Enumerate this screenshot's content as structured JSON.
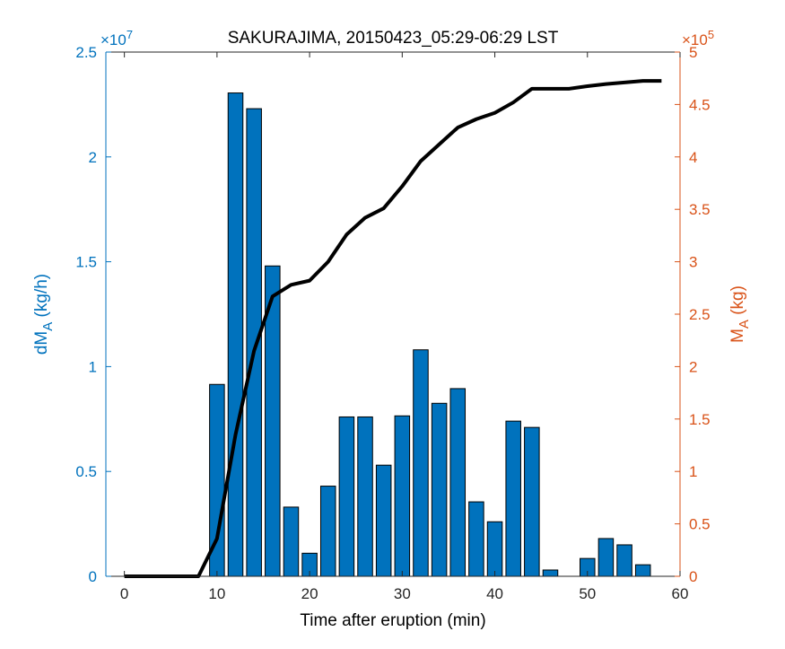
{
  "chart_data": {
    "type": "bar",
    "title": "SAKURAJIMA, 20150423_05:29-06:29 LST",
    "xlabel": "Time after eruption (min)",
    "ylabel_left": {
      "base": "dM",
      "sub": "A",
      "unit": " (kg/h)"
    },
    "ylabel_right": {
      "base": "M",
      "sub": "A",
      "unit": " (kg)"
    },
    "left_exponent": {
      "base": "×10",
      "power": "7"
    },
    "right_exponent": {
      "base": "×10",
      "power": "5"
    },
    "xlim": [
      -2,
      60
    ],
    "ylim_left": [
      0,
      25000000
    ],
    "ylim_right": [
      0,
      500000
    ],
    "x_ticks": [
      0,
      10,
      20,
      30,
      40,
      50,
      60
    ],
    "y_ticks_left": [
      0,
      0.5,
      1,
      1.5,
      2,
      2.5
    ],
    "y_ticks_right": [
      0,
      0.5,
      1,
      1.5,
      2,
      2.5,
      3,
      3.5,
      4,
      4.5,
      5
    ],
    "colors": {
      "bars": "#0072BD",
      "left_axis": "#0072BD",
      "right_axis": "#D95319",
      "cumulative_line": "#000000"
    },
    "series": [
      {
        "axis": "left",
        "type": "bar",
        "x": [
          10,
          12,
          14,
          16,
          18,
          20,
          22,
          24,
          26,
          28,
          30,
          32,
          34,
          36,
          38,
          40,
          42,
          44,
          46,
          48,
          50,
          52,
          54,
          56
        ],
        "values": [
          9150000,
          23050000,
          22300000,
          14800000,
          3300000,
          1100000,
          4300000,
          7600000,
          7600000,
          5300000,
          7650000,
          10800000,
          8250000,
          8950000,
          3550000,
          2600000,
          7400000,
          7100000,
          300000,
          0,
          850000,
          1800000,
          1500000,
          550000
        ]
      },
      {
        "axis": "right",
        "type": "line",
        "x": [
          0,
          2,
          4,
          6,
          8,
          10,
          12,
          14,
          16,
          18,
          20,
          22,
          24,
          26,
          28,
          30,
          32,
          34,
          36,
          38,
          40,
          42,
          44,
          46,
          48,
          50,
          52,
          54,
          56,
          58
        ],
        "values": [
          0,
          0,
          0,
          0,
          0,
          36000,
          135000,
          215000,
          267000,
          278000,
          282000,
          300000,
          326000,
          342000,
          351000,
          372000,
          396000,
          412000,
          428000,
          436000,
          442000,
          452000,
          465000,
          465000,
          465000,
          467500,
          469500,
          471000,
          472500,
          472500
        ]
      }
    ]
  }
}
